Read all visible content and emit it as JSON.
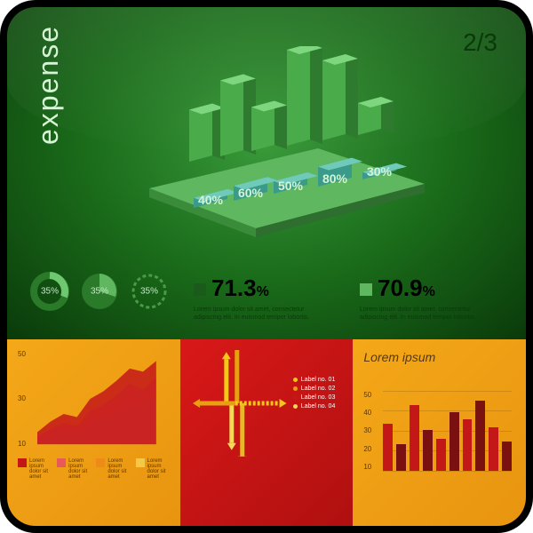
{
  "title": "expense",
  "pager": "2/3",
  "iso_chart": {
    "type": "3d-isometric-bar",
    "platform_color": "#5fb85f",
    "platform_edge": "#3a9b3a",
    "back_bars": {
      "values": [
        65,
        95,
        55,
        120,
        100,
        40
      ],
      "colors_top": [
        "#7ed67e",
        "#7ed67e",
        "#7ed67e",
        "#7ed67e",
        "#7ed67e",
        "#7ed67e"
      ],
      "colors_front": [
        "#4aab4a",
        "#4aab4a",
        "#4aab4a",
        "#4aab4a",
        "#4aab4a",
        "#4aab4a"
      ],
      "colors_side": [
        "#2e7a2e",
        "#2e7a2e",
        "#2e7a2e",
        "#2e7a2e",
        "#2e7a2e",
        "#2e7a2e"
      ]
    },
    "front_bars": {
      "labels": [
        "40%",
        "60%",
        "50%",
        "80%",
        "30%"
      ],
      "values": [
        40,
        60,
        50,
        80,
        30
      ],
      "colors_top": [
        "#6fcaba",
        "#6fcaba",
        "#6fcaba",
        "#6fcaba",
        "#6fcaba"
      ],
      "colors_front": [
        "#3a9b8a",
        "#3a9b8a",
        "#3a9b8a",
        "#3a9b8a",
        "#3a9b8a"
      ],
      "label_color": "#d4f4d4",
      "label_fontsize": 14
    }
  },
  "donuts": [
    {
      "value": 35,
      "label": "35%",
      "ring": "#2a7a2a",
      "fill": "#6fc86f",
      "style": "ring"
    },
    {
      "value": 35,
      "label": "35%",
      "ring": "#2a7a2a",
      "fill": "#5fb85f",
      "style": "pie"
    },
    {
      "value": 35,
      "label": "35%",
      "ring": "#4a9a4a",
      "fill": "none",
      "style": "dashed"
    }
  ],
  "stats": [
    {
      "value": "71.3",
      "pct": "%",
      "swatch": "#1a5a1a",
      "text": "Lorem ipsum dolor sit amet, consectetur adipiscing elit. In euismod tempor lobortis."
    },
    {
      "value": "70.9",
      "pct": "%",
      "swatch": "#5fb85f",
      "text": "Lorem ipsum dolor sit amet, consectetur adipiscing elit. In euismod tempor lobortis."
    }
  ],
  "area_chart": {
    "type": "area",
    "y_ticks": [
      "50",
      "30",
      "10"
    ],
    "y_max": 60,
    "series": [
      {
        "color": "#c41818",
        "points": [
          8,
          15,
          20,
          18,
          30,
          35,
          42,
          50,
          48,
          55
        ]
      },
      {
        "color": "#e85a5a",
        "points": [
          5,
          10,
          14,
          12,
          22,
          26,
          32,
          40,
          36,
          44
        ]
      },
      {
        "color": "#f4a8a8",
        "points": [
          3,
          6,
          9,
          8,
          14,
          18,
          22,
          28,
          25,
          32
        ]
      }
    ],
    "legend": [
      {
        "color": "#c41818",
        "text": "Lorem ipsum dolor sit amet"
      },
      {
        "color": "#e85a5a",
        "text": "Lorem ipsum dolor sit amet"
      },
      {
        "color": "#ed8a18",
        "text": "Lorem ipsum dolor sit amet"
      },
      {
        "color": "#f4c848",
        "text": "Lorem ipsum dolor sit amet"
      }
    ]
  },
  "arrows": {
    "type": "arrow-diagram",
    "items": [
      {
        "dir": "up",
        "len": 50,
        "color": "#f4c818",
        "x": 40
      },
      {
        "dir": "up",
        "len": 70,
        "color": "#e8a010",
        "x": 52
      },
      {
        "dir": "down",
        "len": 45,
        "color": "#f4d858",
        "x": 46
      },
      {
        "dir": "down",
        "len": 60,
        "color": "#e8b828",
        "x": 58
      },
      {
        "dir": "right",
        "len": 50,
        "color": "#f4c818",
        "y": 60
      },
      {
        "dir": "left",
        "len": 40,
        "color": "#e8a010",
        "y": 60
      }
    ],
    "labels": [
      {
        "color": "#f4c818",
        "text": "Label no. 01"
      },
      {
        "color": "#e8a010",
        "text": "Label no. 02"
      },
      {
        "color": "#c41818",
        "text": "Label no. 03"
      },
      {
        "color": "#f4d858",
        "text": "Label no. 04"
      }
    ]
  },
  "bar_chart": {
    "type": "bar",
    "title": "Lorem ipsum",
    "y_ticks": [
      "50",
      "40",
      "30",
      "20",
      "10"
    ],
    "y_max": 55,
    "bars": [
      {
        "v": 32,
        "c": "#c41818"
      },
      {
        "v": 18,
        "c": "#7a1010"
      },
      {
        "v": 45,
        "c": "#c41818"
      },
      {
        "v": 28,
        "c": "#7a1010"
      },
      {
        "v": 22,
        "c": "#c41818"
      },
      {
        "v": 40,
        "c": "#7a1010"
      },
      {
        "v": 35,
        "c": "#c41818"
      },
      {
        "v": 48,
        "c": "#7a1010"
      },
      {
        "v": 30,
        "c": "#c41818"
      },
      {
        "v": 20,
        "c": "#7a1010"
      }
    ]
  }
}
